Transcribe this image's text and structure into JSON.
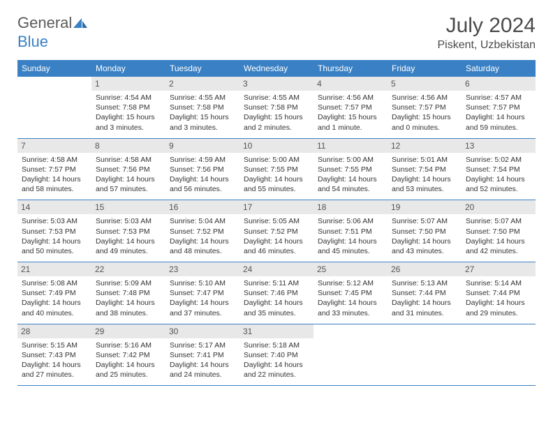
{
  "logo": {
    "part1": "General",
    "part2": "Blue"
  },
  "title": "July 2024",
  "location": "Piskent, Uzbekistan",
  "colors": {
    "header_bg": "#3a80c4",
    "header_text": "#ffffff",
    "daynum_bg": "#e8e8e8",
    "daynum_text": "#555555",
    "body_text": "#333333",
    "logo_gray": "#5a5a5a",
    "logo_blue": "#3a80c4",
    "border": "#3a80c4"
  },
  "weekdays": [
    "Sunday",
    "Monday",
    "Tuesday",
    "Wednesday",
    "Thursday",
    "Friday",
    "Saturday"
  ],
  "weeks": [
    [
      null,
      {
        "n": "1",
        "sr": "4:54 AM",
        "ss": "7:58 PM",
        "dl": "15 hours and 3 minutes."
      },
      {
        "n": "2",
        "sr": "4:55 AM",
        "ss": "7:58 PM",
        "dl": "15 hours and 3 minutes."
      },
      {
        "n": "3",
        "sr": "4:55 AM",
        "ss": "7:58 PM",
        "dl": "15 hours and 2 minutes."
      },
      {
        "n": "4",
        "sr": "4:56 AM",
        "ss": "7:57 PM",
        "dl": "15 hours and 1 minute."
      },
      {
        "n": "5",
        "sr": "4:56 AM",
        "ss": "7:57 PM",
        "dl": "15 hours and 0 minutes."
      },
      {
        "n": "6",
        "sr": "4:57 AM",
        "ss": "7:57 PM",
        "dl": "14 hours and 59 minutes."
      }
    ],
    [
      {
        "n": "7",
        "sr": "4:58 AM",
        "ss": "7:57 PM",
        "dl": "14 hours and 58 minutes."
      },
      {
        "n": "8",
        "sr": "4:58 AM",
        "ss": "7:56 PM",
        "dl": "14 hours and 57 minutes."
      },
      {
        "n": "9",
        "sr": "4:59 AM",
        "ss": "7:56 PM",
        "dl": "14 hours and 56 minutes."
      },
      {
        "n": "10",
        "sr": "5:00 AM",
        "ss": "7:55 PM",
        "dl": "14 hours and 55 minutes."
      },
      {
        "n": "11",
        "sr": "5:00 AM",
        "ss": "7:55 PM",
        "dl": "14 hours and 54 minutes."
      },
      {
        "n": "12",
        "sr": "5:01 AM",
        "ss": "7:54 PM",
        "dl": "14 hours and 53 minutes."
      },
      {
        "n": "13",
        "sr": "5:02 AM",
        "ss": "7:54 PM",
        "dl": "14 hours and 52 minutes."
      }
    ],
    [
      {
        "n": "14",
        "sr": "5:03 AM",
        "ss": "7:53 PM",
        "dl": "14 hours and 50 minutes."
      },
      {
        "n": "15",
        "sr": "5:03 AM",
        "ss": "7:53 PM",
        "dl": "14 hours and 49 minutes."
      },
      {
        "n": "16",
        "sr": "5:04 AM",
        "ss": "7:52 PM",
        "dl": "14 hours and 48 minutes."
      },
      {
        "n": "17",
        "sr": "5:05 AM",
        "ss": "7:52 PM",
        "dl": "14 hours and 46 minutes."
      },
      {
        "n": "18",
        "sr": "5:06 AM",
        "ss": "7:51 PM",
        "dl": "14 hours and 45 minutes."
      },
      {
        "n": "19",
        "sr": "5:07 AM",
        "ss": "7:50 PM",
        "dl": "14 hours and 43 minutes."
      },
      {
        "n": "20",
        "sr": "5:07 AM",
        "ss": "7:50 PM",
        "dl": "14 hours and 42 minutes."
      }
    ],
    [
      {
        "n": "21",
        "sr": "5:08 AM",
        "ss": "7:49 PM",
        "dl": "14 hours and 40 minutes."
      },
      {
        "n": "22",
        "sr": "5:09 AM",
        "ss": "7:48 PM",
        "dl": "14 hours and 38 minutes."
      },
      {
        "n": "23",
        "sr": "5:10 AM",
        "ss": "7:47 PM",
        "dl": "14 hours and 37 minutes."
      },
      {
        "n": "24",
        "sr": "5:11 AM",
        "ss": "7:46 PM",
        "dl": "14 hours and 35 minutes."
      },
      {
        "n": "25",
        "sr": "5:12 AM",
        "ss": "7:45 PM",
        "dl": "14 hours and 33 minutes."
      },
      {
        "n": "26",
        "sr": "5:13 AM",
        "ss": "7:44 PM",
        "dl": "14 hours and 31 minutes."
      },
      {
        "n": "27",
        "sr": "5:14 AM",
        "ss": "7:44 PM",
        "dl": "14 hours and 29 minutes."
      }
    ],
    [
      {
        "n": "28",
        "sr": "5:15 AM",
        "ss": "7:43 PM",
        "dl": "14 hours and 27 minutes."
      },
      {
        "n": "29",
        "sr": "5:16 AM",
        "ss": "7:42 PM",
        "dl": "14 hours and 25 minutes."
      },
      {
        "n": "30",
        "sr": "5:17 AM",
        "ss": "7:41 PM",
        "dl": "14 hours and 24 minutes."
      },
      {
        "n": "31",
        "sr": "5:18 AM",
        "ss": "7:40 PM",
        "dl": "14 hours and 22 minutes."
      },
      null,
      null,
      null
    ]
  ],
  "labels": {
    "sunrise": "Sunrise:",
    "sunset": "Sunset:",
    "daylight": "Daylight:"
  }
}
